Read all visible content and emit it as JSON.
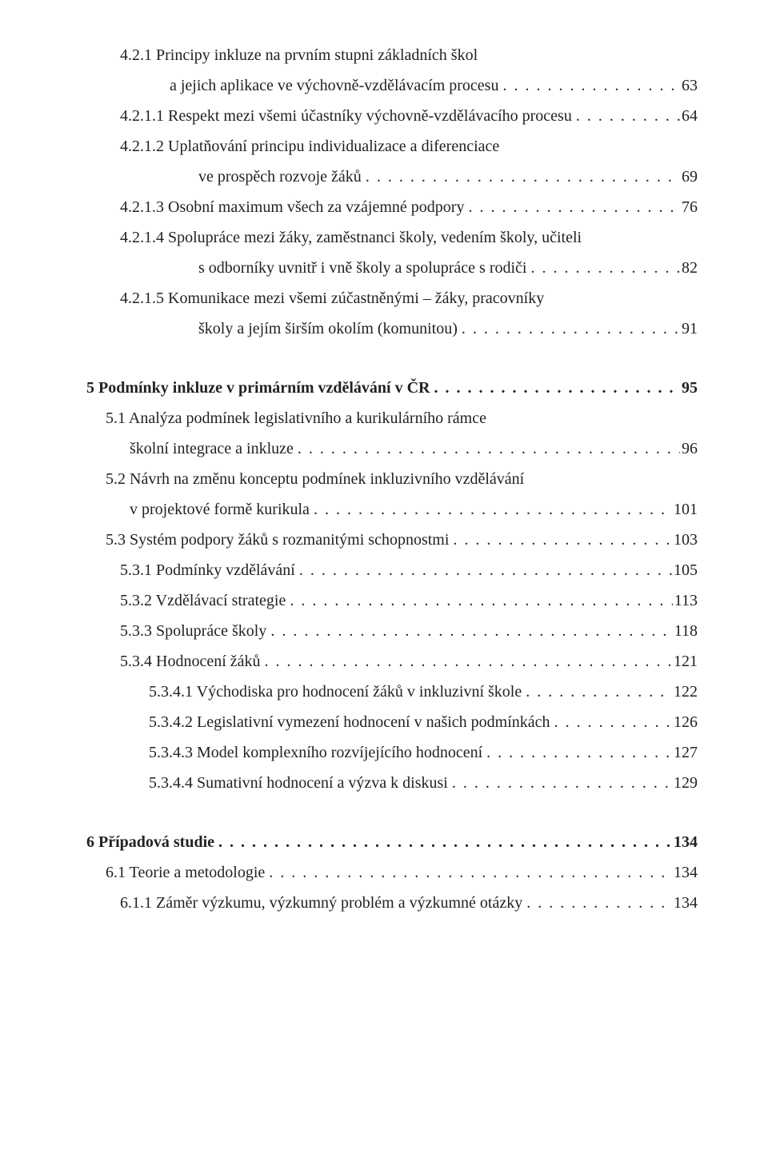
{
  "toc": [
    {
      "type": "text",
      "cls": "lvl3",
      "text": "4.2.1  Principy inkluze na prvním stupni základních škol"
    },
    {
      "type": "line",
      "cls": "lvl3c",
      "label": "a jejich aplikace ve výchovně-vzdělávacím procesu",
      "page": "63"
    },
    {
      "type": "line",
      "cls": "lvl3",
      "label": "4.2.1.1  Respekt mezi všemi účastníky výchovně-vzdělávacího procesu",
      "page": "64"
    },
    {
      "type": "text",
      "cls": "lvl3",
      "text": "4.2.1.2  Uplatňování principu individualizace a diferenciace"
    },
    {
      "type": "line",
      "cls": "lvl4c",
      "label": "ve prospěch rozvoje žáků",
      "page": "69"
    },
    {
      "type": "line",
      "cls": "lvl3",
      "label": "4.2.1.3  Osobní maximum všech za vzájemné podpory",
      "page": "76"
    },
    {
      "type": "text",
      "cls": "lvl3",
      "text": "4.2.1.4  Spolupráce mezi žáky, zaměstnanci školy, vedením školy, učiteli"
    },
    {
      "type": "line",
      "cls": "lvl4c",
      "label": "s odborníky uvnitř i vně školy a spolupráce s rodiči",
      "page": "82"
    },
    {
      "type": "text",
      "cls": "lvl3",
      "text": "4.2.1.5  Komunikace mezi všemi zúčastněnými – žáky, pracovníky"
    },
    {
      "type": "line",
      "cls": "lvl4c",
      "label": "školy a jejím širším okolím (komunitou)",
      "page": "91"
    },
    {
      "type": "gap"
    },
    {
      "type": "line",
      "cls": "lvl1 bold",
      "label": "5   Podmínky inkluze v primárním vzdělávání v ČR",
      "page": "95"
    },
    {
      "type": "text",
      "cls": "lvl2",
      "text": "5.1  Analýza podmínek legislativního a kurikulárního rámce"
    },
    {
      "type": "line",
      "cls": "lvl2c",
      "label": "školní integrace a inkluze",
      "page": "96"
    },
    {
      "type": "text",
      "cls": "lvl2",
      "text": "5.2  Návrh na změnu konceptu podmínek inkluzivního vzdělávání"
    },
    {
      "type": "line",
      "cls": "lvl2c",
      "label": "v projektové formě kurikula",
      "page": "101"
    },
    {
      "type": "line",
      "cls": "lvl2",
      "label": "5.3  Systém podpory žáků s rozmanitými schopnostmi",
      "page": "103"
    },
    {
      "type": "line",
      "cls": "lvl3",
      "label": "5.3.1  Podmínky vzdělávání",
      "page": "105"
    },
    {
      "type": "line",
      "cls": "lvl3",
      "label": "5.3.2  Vzdělávací strategie",
      "page": "113"
    },
    {
      "type": "line",
      "cls": "lvl3",
      "label": "5.3.3  Spolupráce školy",
      "page": "118"
    },
    {
      "type": "line",
      "cls": "lvl3",
      "label": "5.3.4  Hodnocení žáků",
      "page": "121"
    },
    {
      "type": "line",
      "cls": "lvl4",
      "label": "5.3.4.1  Východiska pro hodnocení žáků v inkluzivní škole",
      "page": "122"
    },
    {
      "type": "line",
      "cls": "lvl4",
      "label": "5.3.4.2  Legislativní vymezení hodnocení v našich podmínkách",
      "page": "126"
    },
    {
      "type": "line",
      "cls": "lvl4",
      "label": "5.3.4.3  Model komplexního rozvíjejícího hodnocení",
      "page": "127"
    },
    {
      "type": "line",
      "cls": "lvl4",
      "label": "5.3.4.4  Sumativní hodnocení a výzva k diskusi",
      "page": "129"
    },
    {
      "type": "gap"
    },
    {
      "type": "line",
      "cls": "lvl1 bold",
      "label": "6   Případová studie",
      "page": "134"
    },
    {
      "type": "line",
      "cls": "lvl2",
      "label": "6.1  Teorie a metodologie",
      "page": "134"
    },
    {
      "type": "line",
      "cls": "lvl3",
      "label": "6.1.1  Záměr výzkumu, výzkumný problém a výzkumné otázky",
      "page": "134"
    }
  ]
}
